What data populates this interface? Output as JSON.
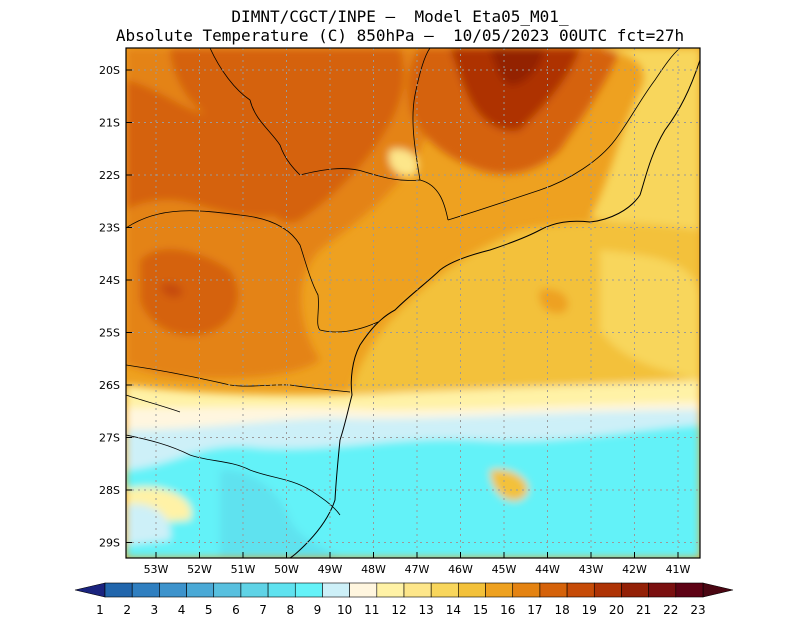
{
  "header": {
    "line1": "DIMNT/CGCT/INPE –  Model Eta05_M01_",
    "line2": "Absolute Temperature (C) 850hPa –  10/05/2023 00UTC fct=27h"
  },
  "map": {
    "lat_ticks": [
      "20S",
      "21S",
      "22S",
      "23S",
      "24S",
      "25S",
      "26S",
      "27S",
      "28S",
      "29S"
    ],
    "lon_ticks": [
      "53W",
      "52W",
      "51W",
      "50W",
      "49W",
      "48W",
      "47W",
      "46W",
      "45W",
      "44W",
      "43W",
      "42W",
      "41W"
    ]
  },
  "colorbar": {
    "labels": [
      "1",
      "2",
      "3",
      "4",
      "5",
      "6",
      "7",
      "8",
      "9",
      "10",
      "11",
      "12",
      "13",
      "14",
      "15",
      "16",
      "17",
      "18",
      "19",
      "20",
      "21",
      "22",
      "23"
    ],
    "colors": [
      "#1f3a93",
      "#2166ac",
      "#2f7fc0",
      "#3d93cc",
      "#4aa9d6",
      "#58c0df",
      "#5fd3e6",
      "#5fe2ef",
      "#64f2f8",
      "#cdf0f8",
      "#fff6df",
      "#fff2a6",
      "#fde68a",
      "#f8d65c",
      "#f3c13a",
      "#eea120",
      "#e48312",
      "#d5620a",
      "#c64b07",
      "#ae3305",
      "#932006",
      "#7a0f0f",
      "#5e0214"
    ],
    "under_color": "#1a237e",
    "over_color": "#4a0612"
  },
  "colors": {
    "coast": "#000000",
    "grid": "#9a9a9a"
  }
}
